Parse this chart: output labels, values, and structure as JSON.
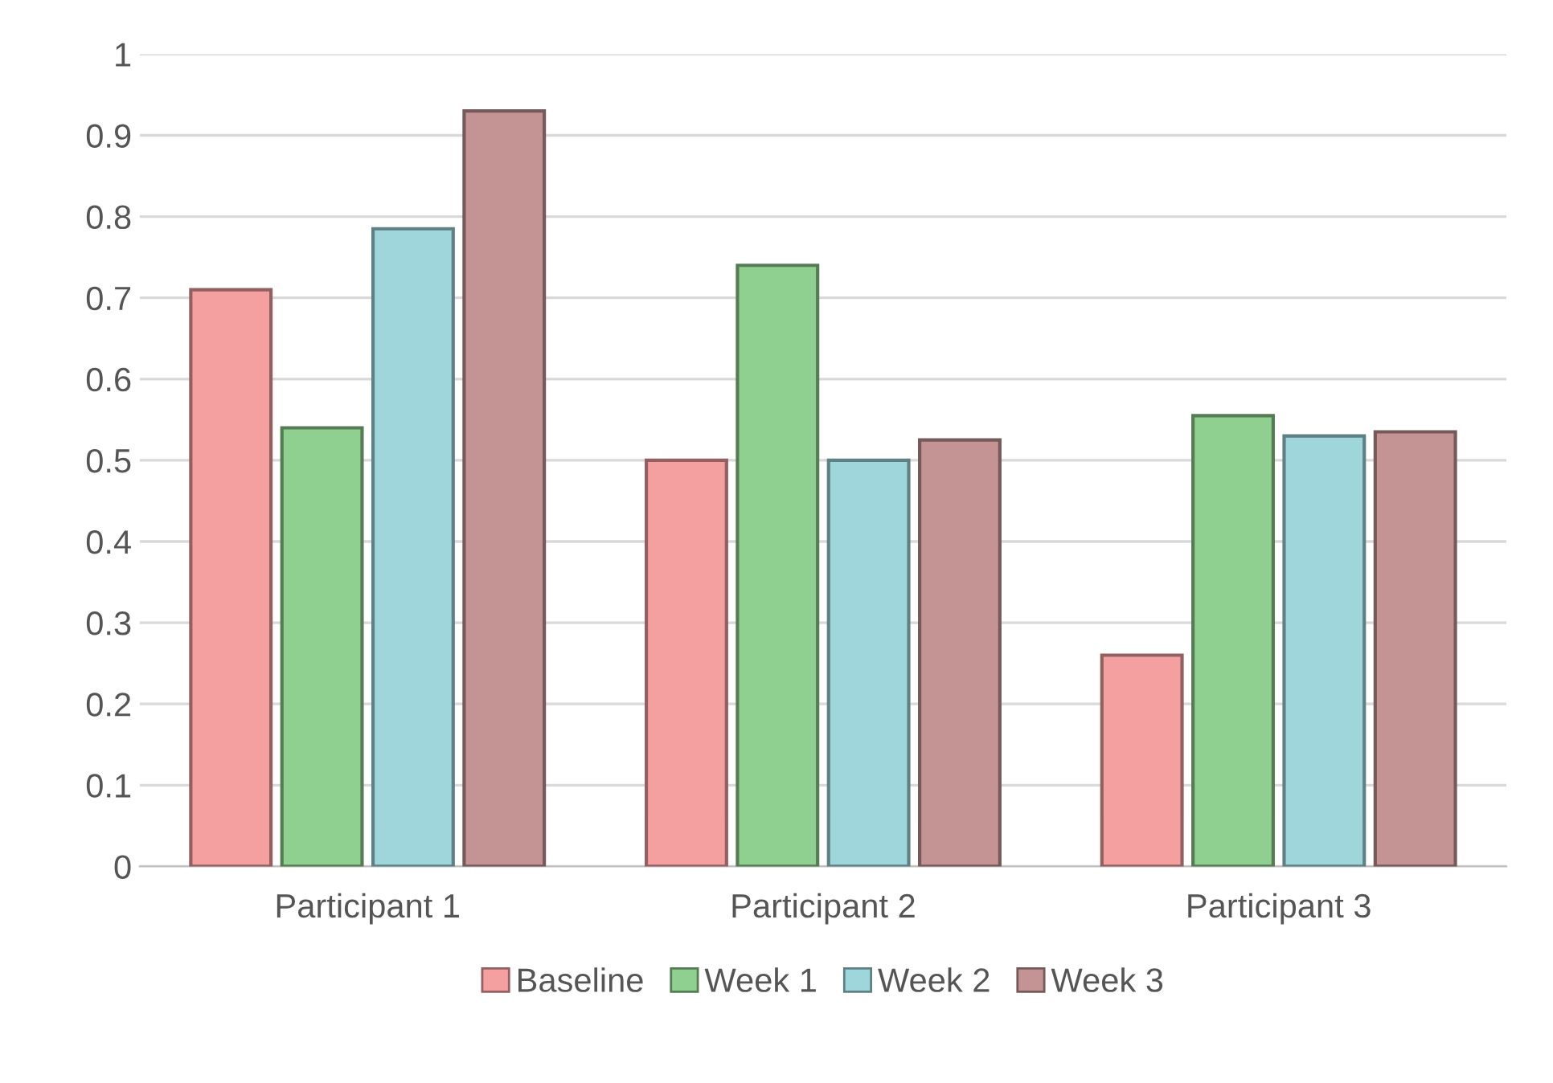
{
  "chart_data": {
    "type": "bar",
    "categories": [
      "Participant 1",
      "Participant 2",
      "Participant 3"
    ],
    "series": [
      {
        "name": "Baseline",
        "color": "#f4a0a0",
        "values": [
          0.71,
          0.5,
          0.26
        ]
      },
      {
        "name": "Week 1",
        "color": "#8fcf8f",
        "values": [
          0.54,
          0.74,
          0.555
        ]
      },
      {
        "name": "Week 2",
        "color": "#9ed6dc",
        "values": [
          0.785,
          0.5,
          0.53
        ]
      },
      {
        "name": "Week 3",
        "color": "#c49494",
        "values": [
          0.93,
          0.525,
          0.535
        ]
      }
    ],
    "ylim": [
      0,
      1
    ],
    "yticks": [
      0,
      0.1,
      0.2,
      0.3,
      0.4,
      0.5,
      0.6,
      0.7,
      0.8,
      0.9,
      1
    ],
    "grid": "y",
    "legend": "bottom"
  }
}
